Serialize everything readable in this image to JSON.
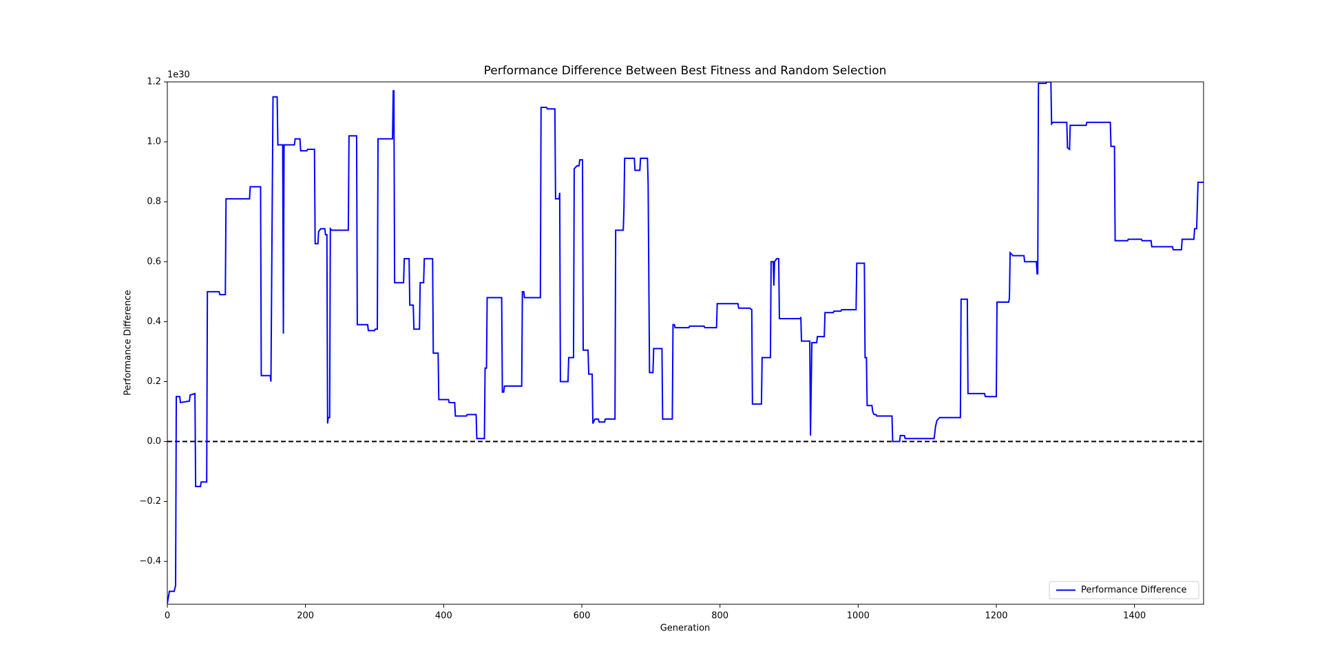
{
  "chart_data": {
    "type": "line",
    "title": "Performance Difference Between Best Fitness and Random Selection",
    "x_label": "Generation",
    "y_label": "Performance Difference",
    "y_offset_label": "1e30",
    "xlim": [
      0,
      1500
    ],
    "ylim": [
      -0.543,
      1.2
    ],
    "xticks": [
      0,
      200,
      400,
      600,
      800,
      1000,
      1200,
      1400
    ],
    "yticks": [
      {
        "value": -0.4,
        "label": "−0.4"
      },
      {
        "value": -0.2,
        "label": "−0.2"
      },
      {
        "value": 0,
        "label": "0.0"
      },
      0.2,
      0.4,
      0.6,
      0.8,
      {
        "value": 1,
        "label": "1.0"
      },
      1.2
    ],
    "reference_line": 0,
    "reference_color": "#000000",
    "legend_position": "lower right",
    "x": [
      0,
      3,
      10,
      12,
      13,
      18,
      19,
      32,
      33,
      40,
      41,
      48,
      49,
      57,
      58,
      75,
      76,
      84,
      85,
      119,
      120,
      135,
      136,
      149,
      150,
      151,
      153,
      159,
      160,
      167,
      168,
      169,
      184,
      185,
      192,
      193,
      202,
      203,
      213,
      214,
      218,
      219,
      222,
      228,
      229,
      231,
      232,
      233,
      235,
      236,
      238,
      262,
      263,
      274,
      275,
      290,
      291,
      300,
      301,
      304,
      305,
      326,
      327,
      328,
      329,
      342,
      343,
      350,
      351,
      356,
      357,
      365,
      366,
      371,
      372,
      384,
      385,
      392,
      393,
      407,
      408,
      416,
      417,
      433,
      434,
      447,
      448,
      459,
      460,
      462,
      463,
      484,
      485,
      487,
      488,
      513,
      514,
      516,
      517,
      540,
      541,
      549,
      550,
      561,
      562,
      567,
      568,
      569,
      580,
      581,
      588,
      589,
      593,
      596,
      597,
      601,
      602,
      609,
      610,
      615,
      616,
      619,
      624,
      625,
      633,
      634,
      648,
      649,
      660,
      661,
      662,
      676,
      677,
      684,
      685,
      695,
      696,
      698,
      703,
      704,
      716,
      717,
      731,
      732,
      734,
      735,
      755,
      756,
      777,
      778,
      795,
      796,
      826,
      827,
      843,
      846,
      847,
      860,
      861,
      873,
      874,
      877,
      878,
      879,
      882,
      885,
      886,
      916,
      917,
      918,
      930,
      931,
      933,
      940,
      941,
      951,
      952,
      964,
      965,
      975,
      976,
      997,
      998,
      1009,
      1010,
      1012,
      1013,
      1020,
      1021,
      1023,
      1026,
      1027,
      1049,
      1050,
      1060,
      1061,
      1067,
      1068,
      1110,
      1112,
      1114,
      1118,
      1148,
      1149,
      1158,
      1159,
      1183,
      1184,
      1200,
      1201,
      1218,
      1219,
      1220,
      1224,
      1240,
      1241,
      1258,
      1259,
      1260,
      1261,
      1272,
      1273,
      1279,
      1280,
      1282,
      1302,
      1303,
      1306,
      1307,
      1330,
      1331,
      1365,
      1366,
      1371,
      1372,
      1390,
      1391,
      1410,
      1411,
      1424,
      1425,
      1455,
      1456,
      1468,
      1469,
      1486,
      1487,
      1490,
      1492,
      1500
    ],
    "series": [
      {
        "name": "Performance Difference",
        "color": "#0000ff",
        "values": [
          -0.54,
          -0.5,
          -0.5,
          -0.48,
          0.15,
          0.15,
          0.13,
          0.135,
          0.155,
          0.16,
          -0.15,
          -0.15,
          -0.135,
          -0.135,
          0.5,
          0.5,
          0.49,
          0.49,
          0.81,
          0.81,
          0.85,
          0.85,
          0.22,
          0.22,
          0.2,
          0.52,
          1.15,
          1.15,
          0.99,
          0.99,
          0.36,
          0.99,
          0.99,
          1.01,
          1.01,
          0.97,
          0.97,
          0.975,
          0.975,
          0.66,
          0.66,
          0.7,
          0.71,
          0.71,
          0.69,
          0.69,
          0.06,
          0.08,
          0.08,
          0.71,
          0.705,
          0.705,
          1.02,
          1.02,
          0.39,
          0.39,
          0.37,
          0.37,
          0.375,
          0.375,
          1.01,
          1.01,
          1.17,
          1.17,
          0.53,
          0.53,
          0.61,
          0.61,
          0.455,
          0.455,
          0.375,
          0.375,
          0.53,
          0.53,
          0.61,
          0.61,
          0.295,
          0.295,
          0.14,
          0.14,
          0.13,
          0.13,
          0.085,
          0.085,
          0.09,
          0.09,
          0.01,
          0.01,
          0.245,
          0.245,
          0.48,
          0.48,
          0.165,
          0.165,
          0.185,
          0.185,
          0.5,
          0.5,
          0.48,
          0.48,
          1.115,
          1.115,
          1.11,
          1.11,
          0.81,
          0.81,
          0.83,
          0.2,
          0.2,
          0.28,
          0.28,
          0.91,
          0.92,
          0.92,
          0.94,
          0.94,
          0.305,
          0.305,
          0.225,
          0.225,
          0.06,
          0.075,
          0.075,
          0.065,
          0.065,
          0.075,
          0.075,
          0.705,
          0.705,
          0.78,
          0.945,
          0.945,
          0.905,
          0.905,
          0.945,
          0.945,
          0.86,
          0.23,
          0.23,
          0.31,
          0.31,
          0.075,
          0.075,
          0.39,
          0.39,
          0.38,
          0.38,
          0.385,
          0.385,
          0.38,
          0.38,
          0.46,
          0.46,
          0.445,
          0.445,
          0.44,
          0.125,
          0.125,
          0.28,
          0.28,
          0.6,
          0.6,
          0.52,
          0.6,
          0.61,
          0.61,
          0.41,
          0.41,
          0.415,
          0.335,
          0.335,
          0.02,
          0.33,
          0.33,
          0.35,
          0.35,
          0.43,
          0.43,
          0.435,
          0.435,
          0.44,
          0.44,
          0.595,
          0.595,
          0.28,
          0.28,
          0.12,
          0.12,
          0.1,
          0.09,
          0.09,
          0.085,
          0.085,
          0.0,
          0.0,
          0.02,
          0.02,
          0.01,
          0.01,
          0.05,
          0.07,
          0.08,
          0.08,
          0.475,
          0.475,
          0.16,
          0.16,
          0.15,
          0.15,
          0.465,
          0.465,
          0.48,
          0.63,
          0.62,
          0.62,
          0.6,
          0.6,
          0.56,
          0.56,
          1.195,
          1.195,
          1.2,
          1.2,
          1.06,
          1.065,
          1.065,
          0.98,
          0.975,
          1.055,
          1.055,
          1.065,
          1.065,
          0.985,
          0.985,
          0.67,
          0.67,
          0.675,
          0.675,
          0.67,
          0.67,
          0.65,
          0.65,
          0.64,
          0.64,
          0.675,
          0.675,
          0.71,
          0.71,
          0.865,
          0.865
        ]
      }
    ]
  }
}
